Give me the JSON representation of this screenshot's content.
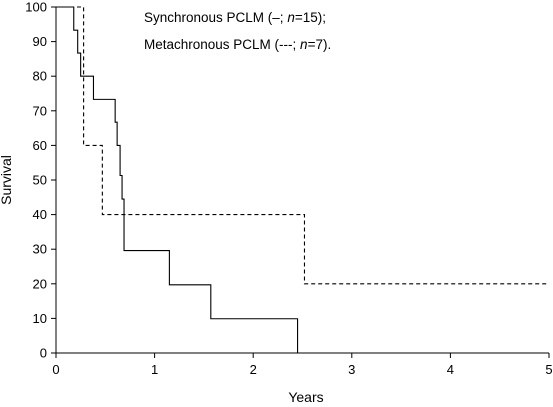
{
  "chart_data": {
    "type": "line",
    "xlabel": "Years",
    "ylabel": "Survival",
    "xlim": [
      0,
      5
    ],
    "ylim": [
      0,
      100
    ],
    "x_ticks": [
      0,
      1,
      2,
      3,
      4,
      5
    ],
    "y_ticks": [
      0,
      10,
      20,
      30,
      40,
      50,
      60,
      70,
      80,
      90,
      100
    ],
    "grid": false,
    "legend_position": "top-center",
    "series": [
      {
        "name": "Synchronous PCLM (–; n=15);",
        "legend_prefix": "Synchronous PCLM (–; ",
        "legend_n": "n",
        "legend_suffix": "=15);",
        "style": "solid",
        "color": "#000000",
        "x": [
          0,
          0.18,
          0.22,
          0.25,
          0.38,
          0.6,
          0.62,
          0.65,
          0.67,
          0.69,
          1.15,
          1.57,
          2.45
        ],
        "y": [
          100,
          93.3,
          86.7,
          80,
          73.3,
          66.7,
          60,
          51.3,
          44.5,
          29.6,
          19.7,
          9.9,
          0
        ]
      },
      {
        "name": "Metachronous PCLM (---; n=7).",
        "legend_prefix": "Metachronous PCLM (---; ",
        "legend_n": "n",
        "legend_suffix": "=7).",
        "style": "dashed",
        "color": "#000000",
        "x": [
          0,
          0.28,
          0.47,
          2.52,
          5
        ],
        "y": [
          100,
          60,
          40,
          20,
          20
        ]
      }
    ]
  }
}
